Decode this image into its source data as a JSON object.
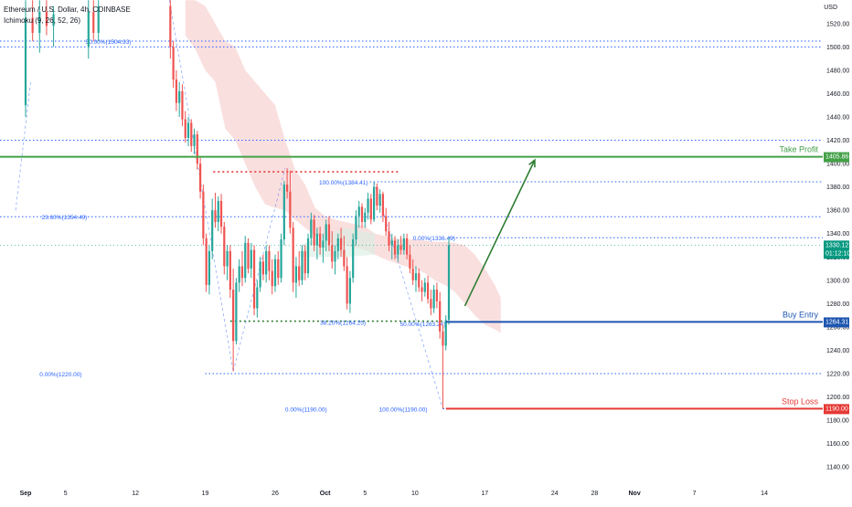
{
  "header": {
    "symbol": "Ethereum / U.S. Dollar, 4h, COINBASE",
    "indicator": "Ichimoku (9, 26, 52, 26)",
    "currency": "USD"
  },
  "chart_data": {
    "type": "candlestick",
    "colors": {
      "up": "#26a69a",
      "down": "#ef5350",
      "fib": "#2962ff",
      "take_profit": "#43a047",
      "buy_entry": "#1e56b0",
      "stop_loss": "#e53935",
      "resistance_dots": "#e53935",
      "support_dots": "#2e7d32",
      "cloud": "#f8d4d4",
      "cloud_green": "#d7efe3",
      "arrow": "#2e7d32",
      "price_tag": "#089981"
    },
    "x_axis": {
      "ticks": [
        {
          "day": 1,
          "label": "Sep",
          "bold": true
        },
        {
          "day": 5,
          "label": "5"
        },
        {
          "day": 12,
          "label": "12"
        },
        {
          "day": 19,
          "label": "19"
        },
        {
          "day": 26,
          "label": "26"
        },
        {
          "day": 31,
          "label": "Oct",
          "bold": true
        },
        {
          "day": 35,
          "label": "5"
        },
        {
          "day": 40,
          "label": "10"
        },
        {
          "day": 47,
          "label": "17"
        },
        {
          "day": 54,
          "label": "24"
        },
        {
          "day": 58,
          "label": "28"
        },
        {
          "day": 62,
          "label": "Nov",
          "bold": true
        },
        {
          "day": 68,
          "label": "7"
        },
        {
          "day": 75,
          "label": "14"
        }
      ]
    },
    "y_axis": {
      "ylim": [
        1130,
        1530
      ],
      "ticks": [
        1140,
        1160,
        1180,
        1200,
        1220,
        1240,
        1260,
        1280,
        1300,
        1320,
        1340,
        1360,
        1380,
        1400,
        1420,
        1440,
        1460,
        1480,
        1500,
        1520
      ],
      "tick_labels": [
        "1140.00",
        "1160.00",
        "1180.00",
        "1200.00",
        "1220.00",
        "1240.00",
        "1260.00",
        "1280.00",
        "1300.00",
        "1320.00",
        "1340.00",
        "1360.00",
        "1380.00",
        "1400.00",
        "1420.00",
        "1440.00",
        "1460.00",
        "1480.00",
        "1500.00",
        "1520.00"
      ]
    },
    "candles": [
      {
        "day": 1.0,
        "o": 1450,
        "h": 1540,
        "l": 1440,
        "c": 1525
      },
      {
        "day": 1.7,
        "o": 1525,
        "h": 1540,
        "l": 1505,
        "c": 1512
      },
      {
        "day": 2.4,
        "o": 1512,
        "h": 1540,
        "l": 1495,
        "c": 1530
      },
      {
        "day": 3.1,
        "o": 1530,
        "h": 1540,
        "l": 1510,
        "c": 1518
      },
      {
        "day": 3.8,
        "o": 1518,
        "h": 1535,
        "l": 1500,
        "c": 1528
      },
      {
        "day": 7.3,
        "o": 1500,
        "h": 1540,
        "l": 1490,
        "c": 1530
      },
      {
        "day": 7.8,
        "o": 1530,
        "h": 1540,
        "l": 1505,
        "c": 1512
      },
      {
        "day": 8.3,
        "o": 1512,
        "h": 1540,
        "l": 1505,
        "c": 1535
      },
      {
        "day": 15.5,
        "o": 1535,
        "h": 1540,
        "l": 1490,
        "c": 1500
      },
      {
        "day": 15.8,
        "o": 1500,
        "h": 1505,
        "l": 1465,
        "c": 1472
      },
      {
        "day": 16.1,
        "o": 1472,
        "h": 1480,
        "l": 1445,
        "c": 1452
      },
      {
        "day": 16.4,
        "o": 1452,
        "h": 1470,
        "l": 1440,
        "c": 1462
      },
      {
        "day": 16.7,
        "o": 1462,
        "h": 1468,
        "l": 1432,
        "c": 1438
      },
      {
        "day": 17.0,
        "o": 1438,
        "h": 1445,
        "l": 1418,
        "c": 1422
      },
      {
        "day": 17.3,
        "o": 1422,
        "h": 1440,
        "l": 1415,
        "c": 1435
      },
      {
        "day": 17.6,
        "o": 1435,
        "h": 1438,
        "l": 1410,
        "c": 1415
      },
      {
        "day": 17.9,
        "o": 1415,
        "h": 1430,
        "l": 1408,
        "c": 1425
      },
      {
        "day": 18.2,
        "o": 1425,
        "h": 1428,
        "l": 1395,
        "c": 1400
      },
      {
        "day": 18.5,
        "o": 1400,
        "h": 1405,
        "l": 1370,
        "c": 1376
      },
      {
        "day": 18.8,
        "o": 1376,
        "h": 1382,
        "l": 1330,
        "c": 1336
      },
      {
        "day": 19.1,
        "o": 1336,
        "h": 1340,
        "l": 1290,
        "c": 1296
      },
      {
        "day": 19.4,
        "o": 1296,
        "h": 1330,
        "l": 1288,
        "c": 1325
      },
      {
        "day": 19.7,
        "o": 1325,
        "h": 1370,
        "l": 1318,
        "c": 1360
      },
      {
        "day": 20.0,
        "o": 1360,
        "h": 1375,
        "l": 1345,
        "c": 1350
      },
      {
        "day": 20.3,
        "o": 1350,
        "h": 1372,
        "l": 1342,
        "c": 1368
      },
      {
        "day": 20.6,
        "o": 1368,
        "h": 1374,
        "l": 1340,
        "c": 1346
      },
      {
        "day": 20.9,
        "o": 1346,
        "h": 1350,
        "l": 1305,
        "c": 1312
      },
      {
        "day": 21.2,
        "o": 1312,
        "h": 1330,
        "l": 1300,
        "c": 1325
      },
      {
        "day": 21.5,
        "o": 1325,
        "h": 1330,
        "l": 1285,
        "c": 1292
      },
      {
        "day": 21.8,
        "o": 1292,
        "h": 1310,
        "l": 1222,
        "c": 1248
      },
      {
        "day": 22.1,
        "o": 1248,
        "h": 1302,
        "l": 1245,
        "c": 1298
      },
      {
        "day": 22.4,
        "o": 1298,
        "h": 1318,
        "l": 1290,
        "c": 1312
      },
      {
        "day": 22.7,
        "o": 1312,
        "h": 1325,
        "l": 1295,
        "c": 1302
      },
      {
        "day": 23.0,
        "o": 1302,
        "h": 1338,
        "l": 1298,
        "c": 1332
      },
      {
        "day": 23.3,
        "o": 1332,
        "h": 1336,
        "l": 1306,
        "c": 1310
      },
      {
        "day": 23.6,
        "o": 1310,
        "h": 1332,
        "l": 1302,
        "c": 1326
      },
      {
        "day": 23.9,
        "o": 1326,
        "h": 1330,
        "l": 1270,
        "c": 1276
      },
      {
        "day": 24.2,
        "o": 1276,
        "h": 1300,
        "l": 1268,
        "c": 1294
      },
      {
        "day": 24.5,
        "o": 1294,
        "h": 1320,
        "l": 1290,
        "c": 1316
      },
      {
        "day": 24.8,
        "o": 1316,
        "h": 1322,
        "l": 1300,
        "c": 1305
      },
      {
        "day": 25.1,
        "o": 1305,
        "h": 1330,
        "l": 1298,
        "c": 1325
      },
      {
        "day": 25.4,
        "o": 1325,
        "h": 1330,
        "l": 1300,
        "c": 1308
      },
      {
        "day": 25.7,
        "o": 1308,
        "h": 1318,
        "l": 1288,
        "c": 1295
      },
      {
        "day": 26.0,
        "o": 1295,
        "h": 1322,
        "l": 1290,
        "c": 1318
      },
      {
        "day": 26.3,
        "o": 1318,
        "h": 1325,
        "l": 1296,
        "c": 1302
      },
      {
        "day": 26.6,
        "o": 1302,
        "h": 1340,
        "l": 1298,
        "c": 1335
      },
      {
        "day": 26.9,
        "o": 1335,
        "h": 1385,
        "l": 1330,
        "c": 1382
      },
      {
        "day": 27.2,
        "o": 1382,
        "h": 1396,
        "l": 1370,
        "c": 1376
      },
      {
        "day": 27.5,
        "o": 1376,
        "h": 1394,
        "l": 1340,
        "c": 1345
      },
      {
        "day": 27.8,
        "o": 1345,
        "h": 1350,
        "l": 1290,
        "c": 1298
      },
      {
        "day": 28.1,
        "o": 1298,
        "h": 1320,
        "l": 1285,
        "c": 1312
      },
      {
        "day": 28.4,
        "o": 1312,
        "h": 1325,
        "l": 1295,
        "c": 1300
      },
      {
        "day": 28.7,
        "o": 1300,
        "h": 1330,
        "l": 1296,
        "c": 1325
      },
      {
        "day": 29.0,
        "o": 1325,
        "h": 1330,
        "l": 1300,
        "c": 1306
      },
      {
        "day": 29.3,
        "o": 1306,
        "h": 1340,
        "l": 1302,
        "c": 1336
      },
      {
        "day": 29.6,
        "o": 1336,
        "h": 1358,
        "l": 1330,
        "c": 1352
      },
      {
        "day": 29.9,
        "o": 1352,
        "h": 1356,
        "l": 1325,
        "c": 1330
      },
      {
        "day": 30.2,
        "o": 1330,
        "h": 1345,
        "l": 1318,
        "c": 1340
      },
      {
        "day": 30.5,
        "o": 1340,
        "h": 1346,
        "l": 1322,
        "c": 1328
      },
      {
        "day": 30.8,
        "o": 1328,
        "h": 1340,
        "l": 1315,
        "c": 1334
      },
      {
        "day": 31.1,
        "o": 1334,
        "h": 1352,
        "l": 1325,
        "c": 1348
      },
      {
        "day": 31.4,
        "o": 1348,
        "h": 1355,
        "l": 1325,
        "c": 1330
      },
      {
        "day": 31.7,
        "o": 1330,
        "h": 1342,
        "l": 1310,
        "c": 1316
      },
      {
        "day": 32.0,
        "o": 1316,
        "h": 1330,
        "l": 1305,
        "c": 1325
      },
      {
        "day": 32.3,
        "o": 1325,
        "h": 1340,
        "l": 1318,
        "c": 1336
      },
      {
        "day": 32.6,
        "o": 1336,
        "h": 1345,
        "l": 1320,
        "c": 1326
      },
      {
        "day": 32.9,
        "o": 1326,
        "h": 1338,
        "l": 1308,
        "c": 1312
      },
      {
        "day": 33.2,
        "o": 1312,
        "h": 1320,
        "l": 1275,
        "c": 1280
      },
      {
        "day": 33.5,
        "o": 1280,
        "h": 1308,
        "l": 1272,
        "c": 1302
      },
      {
        "day": 33.8,
        "o": 1302,
        "h": 1340,
        "l": 1298,
        "c": 1335
      },
      {
        "day": 34.1,
        "o": 1335,
        "h": 1360,
        "l": 1330,
        "c": 1355
      },
      {
        "day": 34.4,
        "o": 1355,
        "h": 1368,
        "l": 1345,
        "c": 1363
      },
      {
        "day": 34.7,
        "o": 1363,
        "h": 1366,
        "l": 1345,
        "c": 1350
      },
      {
        "day": 35.0,
        "o": 1350,
        "h": 1362,
        "l": 1345,
        "c": 1358
      },
      {
        "day": 35.3,
        "o": 1358,
        "h": 1375,
        "l": 1352,
        "c": 1370
      },
      {
        "day": 35.6,
        "o": 1370,
        "h": 1374,
        "l": 1348,
        "c": 1352
      },
      {
        "day": 35.9,
        "o": 1352,
        "h": 1384.41,
        "l": 1350,
        "c": 1380
      },
      {
        "day": 36.2,
        "o": 1380,
        "h": 1383,
        "l": 1360,
        "c": 1364
      },
      {
        "day": 36.5,
        "o": 1364,
        "h": 1378,
        "l": 1358,
        "c": 1374
      },
      {
        "day": 36.8,
        "o": 1374,
        "h": 1376,
        "l": 1350,
        "c": 1355
      },
      {
        "day": 37.1,
        "o": 1355,
        "h": 1362,
        "l": 1338,
        "c": 1342
      },
      {
        "day": 37.4,
        "o": 1342,
        "h": 1350,
        "l": 1325,
        "c": 1330
      },
      {
        "day": 37.7,
        "o": 1330,
        "h": 1340,
        "l": 1318,
        "c": 1334
      },
      {
        "day": 38.0,
        "o": 1334,
        "h": 1338,
        "l": 1318,
        "c": 1322
      },
      {
        "day": 38.3,
        "o": 1322,
        "h": 1335,
        "l": 1316,
        "c": 1330
      },
      {
        "day": 38.6,
        "o": 1330,
        "h": 1338,
        "l": 1322,
        "c": 1326
      },
      {
        "day": 38.9,
        "o": 1326,
        "h": 1340,
        "l": 1322,
        "c": 1336
      },
      {
        "day": 39.2,
        "o": 1336,
        "h": 1340,
        "l": 1318,
        "c": 1322
      },
      {
        "day": 39.5,
        "o": 1322,
        "h": 1330,
        "l": 1306,
        "c": 1310
      },
      {
        "day": 39.8,
        "o": 1310,
        "h": 1318,
        "l": 1296,
        "c": 1300
      },
      {
        "day": 40.1,
        "o": 1300,
        "h": 1312,
        "l": 1290,
        "c": 1306
      },
      {
        "day": 40.4,
        "o": 1306,
        "h": 1310,
        "l": 1290,
        "c": 1294
      },
      {
        "day": 40.7,
        "o": 1294,
        "h": 1300,
        "l": 1282,
        "c": 1290
      },
      {
        "day": 41.0,
        "o": 1290,
        "h": 1302,
        "l": 1286,
        "c": 1298
      },
      {
        "day": 41.3,
        "o": 1298,
        "h": 1304,
        "l": 1280,
        "c": 1284
      },
      {
        "day": 41.6,
        "o": 1284,
        "h": 1292,
        "l": 1270,
        "c": 1276
      },
      {
        "day": 41.9,
        "o": 1276,
        "h": 1296,
        "l": 1272,
        "c": 1292
      },
      {
        "day": 42.2,
        "o": 1292,
        "h": 1298,
        "l": 1276,
        "c": 1282
      },
      {
        "day": 42.5,
        "o": 1282,
        "h": 1290,
        "l": 1250,
        "c": 1256
      },
      {
        "day": 42.8,
        "o": 1256,
        "h": 1262,
        "l": 1190,
        "c": 1244
      },
      {
        "day": 43.1,
        "o": 1244,
        "h": 1270,
        "l": 1240,
        "c": 1266
      },
      {
        "day": 43.4,
        "o": 1266,
        "h": 1336.49,
        "l": 1262,
        "c": 1330.12
      }
    ],
    "cloud": [
      {
        "day": 17,
        "top": 1540,
        "bot": 1510
      },
      {
        "day": 18,
        "top": 1540,
        "bot": 1498
      },
      {
        "day": 19,
        "top": 1535,
        "bot": 1480
      },
      {
        "day": 20,
        "top": 1520,
        "bot": 1470
      },
      {
        "day": 21,
        "top": 1505,
        "bot": 1430
      },
      {
        "day": 22,
        "top": 1500,
        "bot": 1420
      },
      {
        "day": 23,
        "top": 1480,
        "bot": 1400
      },
      {
        "day": 24,
        "top": 1470,
        "bot": 1380
      },
      {
        "day": 25,
        "top": 1460,
        "bot": 1365
      },
      {
        "day": 26,
        "top": 1450,
        "bot": 1362
      },
      {
        "day": 27,
        "top": 1420,
        "bot": 1360
      },
      {
        "day": 28,
        "top": 1395,
        "bot": 1352
      },
      {
        "day": 29,
        "top": 1382,
        "bot": 1345
      },
      {
        "day": 30,
        "top": 1362,
        "bot": 1338
      },
      {
        "day": 31,
        "top": 1355,
        "bot": 1335
      },
      {
        "day": 32,
        "top": 1352,
        "bot": 1330
      },
      {
        "day": 33,
        "top": 1350,
        "bot": 1330
      },
      {
        "day": 34,
        "top": 1348,
        "bot": 1328
      },
      {
        "day": 35,
        "top": 1346,
        "bot": 1326
      },
      {
        "day": 36,
        "top": 1340,
        "bot": 1322
      },
      {
        "day": 37,
        "top": 1338,
        "bot": 1318
      },
      {
        "day": 38,
        "top": 1336,
        "bot": 1315
      },
      {
        "day": 39,
        "top": 1335,
        "bot": 1312
      },
      {
        "day": 40,
        "top": 1335,
        "bot": 1310
      },
      {
        "day": 41,
        "top": 1334,
        "bot": 1306
      },
      {
        "day": 42,
        "top": 1333,
        "bot": 1300
      },
      {
        "day": 43,
        "top": 1333,
        "bot": 1296
      },
      {
        "day": 44,
        "top": 1332,
        "bot": 1290
      },
      {
        "day": 45,
        "top": 1330,
        "bot": 1280
      },
      {
        "day": 46,
        "top": 1322,
        "bot": 1270
      },
      {
        "day": 47,
        "top": 1310,
        "bot": 1262
      },
      {
        "day": 48,
        "top": 1296,
        "bot": 1258
      },
      {
        "day": 48.6,
        "top": 1285,
        "bot": 1255
      }
    ],
    "levels": [
      {
        "name": "fib-top",
        "value": 1504.93,
        "label": "50.00%(1504.93)",
        "label_day": 7.0
      },
      {
        "name": "level-1500",
        "value": 1500
      },
      {
        "name": "level-1420",
        "value": 1420
      },
      {
        "name": "fib-100-upper",
        "value": 1384.41,
        "label": "100.00%(1384.41)",
        "label_day": 30.4
      },
      {
        "name": "fib-23-6",
        "value": 1354.49,
        "label": "23.60%(1354.49)",
        "label_day": 2.6
      },
      {
        "name": "fib-0-upper",
        "value": 1336.49,
        "label": "0.00%(1336.49)",
        "label_day": 39.8
      },
      {
        "name": "fib-0-lower",
        "value": 1220.0,
        "label": "0.00%(1220.00)",
        "label_day": 2.4
      },
      {
        "name": "fib-0-stop",
        "value": 1190.0,
        "label": "0.00%(1190.00)",
        "label_day": 27.0
      },
      {
        "name": "fib-100-stop",
        "value": 1190.0,
        "label": "100.00%(1190.00)",
        "label_day": 36.4
      }
    ],
    "trade_levels": [
      {
        "name": "take-profit",
        "value": 1405.86,
        "label": "Take Profit",
        "price_label": "1405.86"
      },
      {
        "name": "buy-entry",
        "value": 1264.31,
        "label": "Buy Entry",
        "price_label": "1264.31"
      },
      {
        "name": "stop-loss",
        "value": 1190.0,
        "label": "Stop Loss",
        "price_label": "1190.00"
      }
    ],
    "fib_mid_labels": [
      {
        "text": "38.20%(1264.25)",
        "value": 1264.25,
        "day": 30.5
      },
      {
        "text": "50.00%(1263.24)",
        "value": 1263.24,
        "day": 38.5
      }
    ],
    "current_price": {
      "value": 1330.12,
      "label": "1330.12",
      "countdown": "01:12:10"
    },
    "resistance_dots": {
      "value": 1393,
      "day_start": 19.8,
      "day_end": 38.5
    },
    "support_dots": {
      "value": 1265,
      "day_start": 21.5,
      "day_end": 43.2
    },
    "arrow": {
      "from_day": 45,
      "from_value": 1278,
      "to_day": 52,
      "to_value": 1403
    }
  }
}
